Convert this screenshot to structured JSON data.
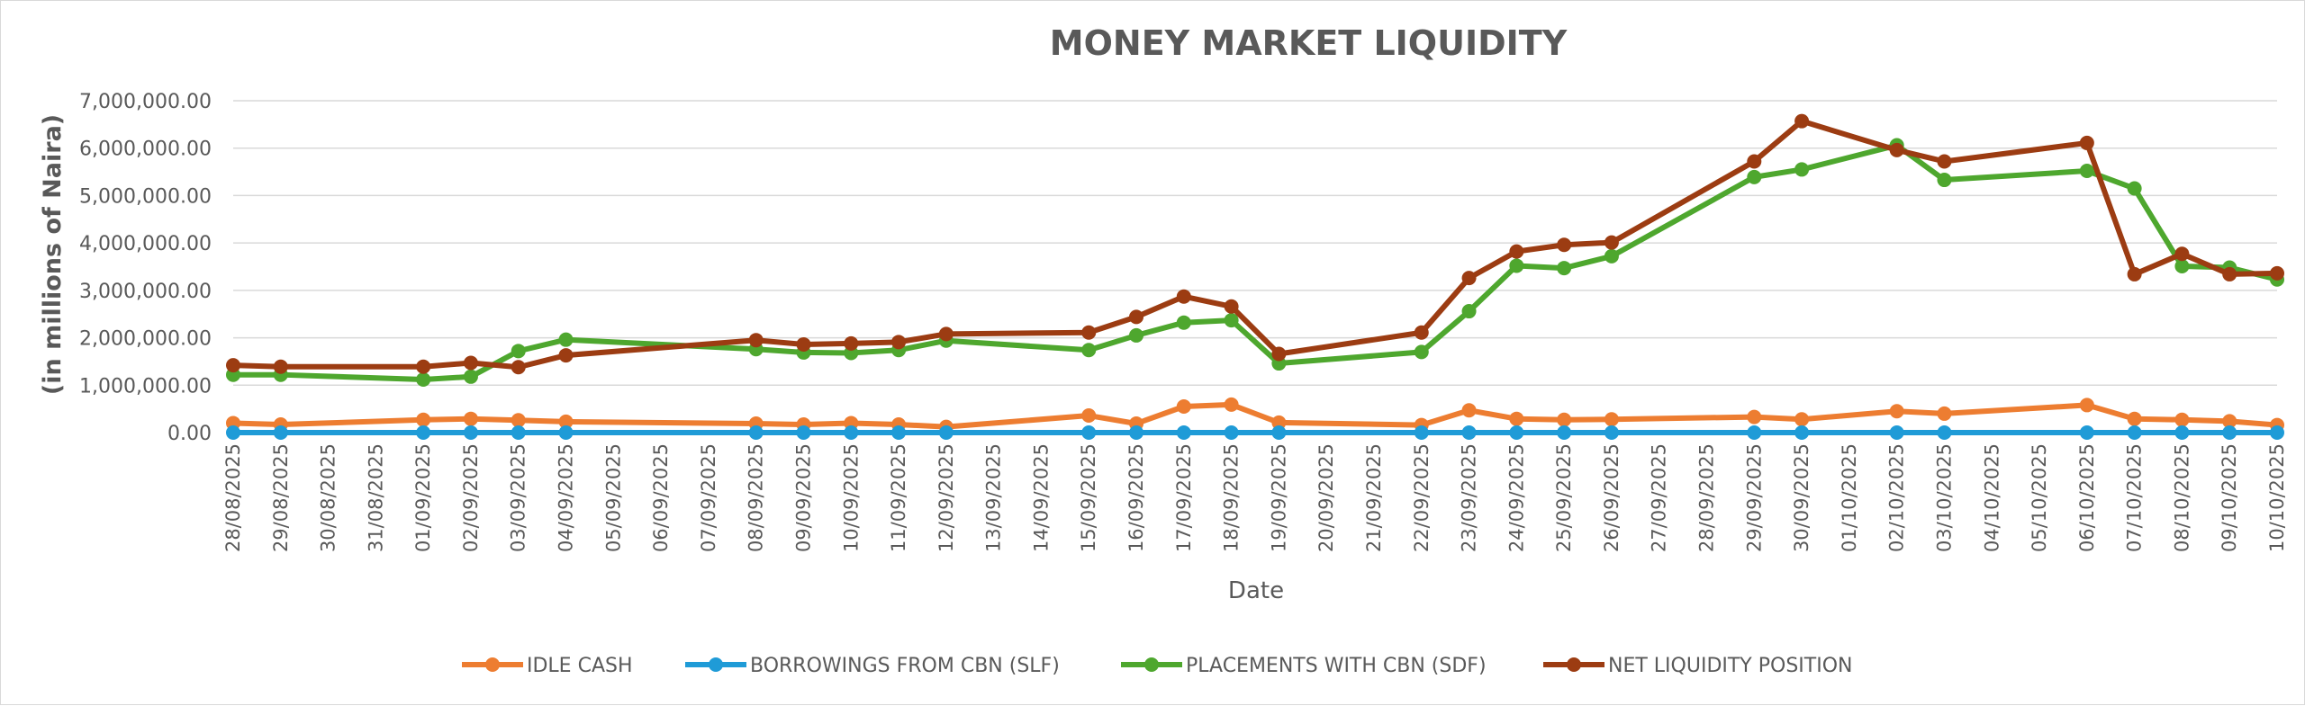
{
  "chart_data": {
    "type": "line",
    "title": "MONEY MARKET LIQUIDITY",
    "xlabel": "Date",
    "ylabel": "(in millions of Naira)",
    "ylim": [
      0,
      7000000
    ],
    "y_ticks": [
      "0.00",
      "1,000,000.00",
      "2,000,000.00",
      "3,000,000.00",
      "4,000,000.00",
      "5,000,000.00",
      "6,000,000.00",
      "7,000,000.00"
    ],
    "grid": true,
    "legend_position": "bottom",
    "categories": [
      "28/08/2025",
      "29/08/2025",
      "30/08/2025",
      "31/08/2025",
      "01/09/2025",
      "02/09/2025",
      "03/09/2025",
      "04/09/2025",
      "05/09/2025",
      "06/09/2025",
      "07/09/2025",
      "08/09/2025",
      "09/09/2025",
      "10/09/2025",
      "11/09/2025",
      "12/09/2025",
      "13/09/2025",
      "14/09/2025",
      "15/09/2025",
      "16/09/2025",
      "17/09/2025",
      "18/09/2025",
      "19/09/2025",
      "20/09/2025",
      "21/09/2025",
      "22/09/2025",
      "23/09/2025",
      "24/09/2025",
      "25/09/2025",
      "26/09/2025",
      "27/09/2025",
      "28/09/2025",
      "29/09/2025",
      "30/09/2025",
      "01/10/2025",
      "02/10/2025",
      "03/10/2025",
      "04/10/2025",
      "05/10/2025",
      "06/10/2025",
      "07/10/2025",
      "08/10/2025",
      "09/10/2025",
      "10/10/2025"
    ],
    "series": [
      {
        "name": "IDLE CASH",
        "color": "#ed7d31",
        "values": [
          200000,
          170000,
          null,
          null,
          270000,
          290000,
          260000,
          230000,
          null,
          null,
          null,
          190000,
          170000,
          200000,
          170000,
          120000,
          null,
          null,
          360000,
          190000,
          550000,
          590000,
          210000,
          null,
          null,
          160000,
          470000,
          290000,
          270000,
          280000,
          null,
          null,
          330000,
          280000,
          null,
          450000,
          400000,
          null,
          null,
          580000,
          290000,
          270000,
          240000,
          160000
        ]
      },
      {
        "name": "BORROWINGS FROM CBN (SLF)",
        "color": "#1f9bd7",
        "values": [
          0,
          0,
          null,
          null,
          0,
          0,
          0,
          0,
          null,
          null,
          null,
          0,
          0,
          0,
          0,
          0,
          null,
          null,
          0,
          0,
          0,
          0,
          0,
          null,
          null,
          0,
          0,
          0,
          0,
          0,
          null,
          null,
          0,
          0,
          null,
          0,
          0,
          null,
          null,
          0,
          0,
          0,
          0,
          0
        ]
      },
      {
        "name": "PLACEMENTS WITH CBN (SDF)",
        "color": "#4ea72e",
        "values": [
          1220000,
          1220000,
          null,
          null,
          1120000,
          1180000,
          1720000,
          1960000,
          null,
          null,
          null,
          1760000,
          1690000,
          1680000,
          1740000,
          1940000,
          null,
          null,
          1740000,
          2050000,
          2320000,
          2370000,
          1460000,
          null,
          null,
          1700000,
          2560000,
          3520000,
          3470000,
          3720000,
          null,
          null,
          5390000,
          5550000,
          null,
          6060000,
          5330000,
          null,
          null,
          5520000,
          5150000,
          3510000,
          3480000,
          3230000
        ]
      },
      {
        "name": "NET LIQUIDITY POSITION",
        "color": "#9c3c12",
        "values": [
          1420000,
          1390000,
          null,
          null,
          1390000,
          1470000,
          1380000,
          1630000,
          null,
          null,
          null,
          1950000,
          1860000,
          1880000,
          1910000,
          2080000,
          null,
          null,
          2110000,
          2440000,
          2870000,
          2660000,
          1660000,
          null,
          null,
          2110000,
          3260000,
          3820000,
          3960000,
          4010000,
          null,
          null,
          5720000,
          6570000,
          null,
          5960000,
          5720000,
          null,
          null,
          6110000,
          3340000,
          3770000,
          3340000,
          3360000
        ]
      }
    ]
  }
}
